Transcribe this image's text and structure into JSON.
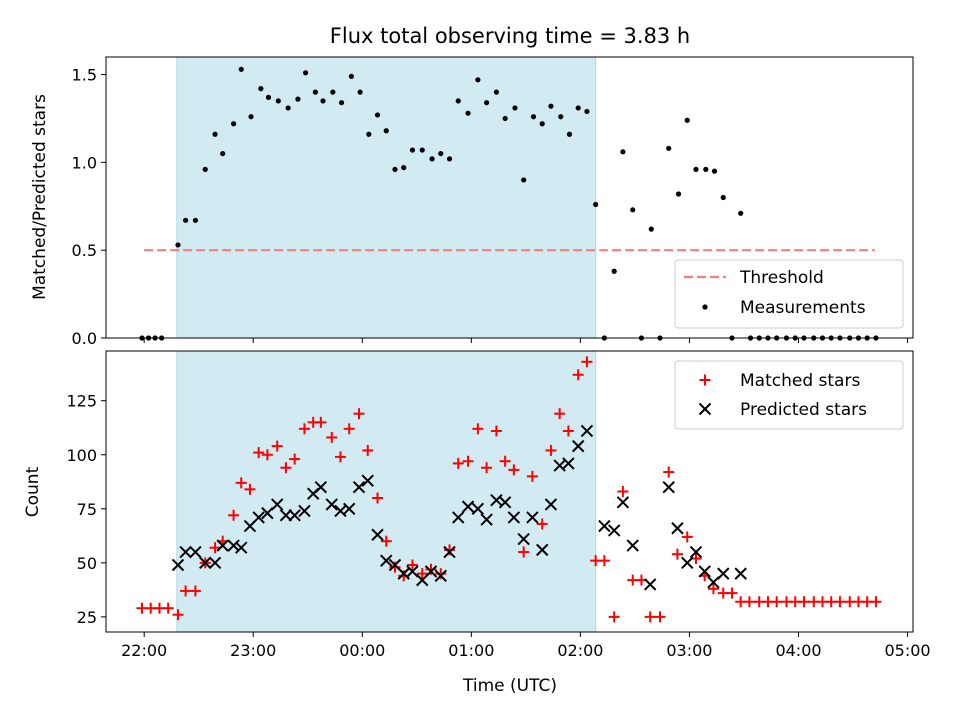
{
  "chart_data": {
    "type": "scatter",
    "title": "Flux total observing time = 3.83 h",
    "x_axis": {
      "label": "Time (UTC)",
      "ticks": [
        "22:00",
        "23:00",
        "00:00",
        "01:00",
        "02:00",
        "03:00",
        "04:00",
        "05:00"
      ],
      "tick_hours": [
        0,
        1,
        2,
        3,
        4,
        5,
        6,
        7
      ],
      "range_hours": [
        -0.35,
        7.05
      ],
      "origin": "22:00"
    },
    "shaded_interval_hours": [
      0.3,
      4.14
    ],
    "shade_color": "#add8e6",
    "top_panel": {
      "ylabel": "Matched/Predicted stars",
      "ylim": [
        0,
        1.6
      ],
      "yticks": [
        "0.0",
        "0.5",
        "1.0",
        "1.5"
      ],
      "ytick_values": [
        0,
        0.5,
        1.0,
        1.5
      ],
      "threshold": {
        "name": "Threshold",
        "value": 0.5,
        "x_range_hours": [
          0,
          6.7
        ],
        "color": "#f08080"
      },
      "measurements_name": "Measurements",
      "measurements": [
        [
          -0.02,
          0
        ],
        [
          0.04,
          0
        ],
        [
          0.1,
          0
        ],
        [
          0.16,
          0
        ],
        [
          0.31,
          0.53
        ],
        [
          0.38,
          0.67
        ],
        [
          0.47,
          0.67
        ],
        [
          0.56,
          0.96
        ],
        [
          0.65,
          1.16
        ],
        [
          0.72,
          1.05
        ],
        [
          0.82,
          1.22
        ],
        [
          0.89,
          1.53
        ],
        [
          0.98,
          1.26
        ],
        [
          1.07,
          1.42
        ],
        [
          1.14,
          1.37
        ],
        [
          1.23,
          1.35
        ],
        [
          1.32,
          1.31
        ],
        [
          1.41,
          1.36
        ],
        [
          1.48,
          1.51
        ],
        [
          1.57,
          1.4
        ],
        [
          1.64,
          1.35
        ],
        [
          1.73,
          1.4
        ],
        [
          1.81,
          1.34
        ],
        [
          1.9,
          1.49
        ],
        [
          1.98,
          1.4
        ],
        [
          2.06,
          1.16
        ],
        [
          2.14,
          1.27
        ],
        [
          2.22,
          1.18
        ],
        [
          2.3,
          0.96
        ],
        [
          2.38,
          0.97
        ],
        [
          2.46,
          1.07
        ],
        [
          2.55,
          1.07
        ],
        [
          2.64,
          1.02
        ],
        [
          2.72,
          1.05
        ],
        [
          2.8,
          1.02
        ],
        [
          2.88,
          1.35
        ],
        [
          2.97,
          1.28
        ],
        [
          3.06,
          1.47
        ],
        [
          3.14,
          1.34
        ],
        [
          3.23,
          1.4
        ],
        [
          3.31,
          1.25
        ],
        [
          3.4,
          1.31
        ],
        [
          3.48,
          0.9
        ],
        [
          3.57,
          1.26
        ],
        [
          3.65,
          1.22
        ],
        [
          3.73,
          1.32
        ],
        [
          3.82,
          1.26
        ],
        [
          3.9,
          1.16
        ],
        [
          3.98,
          1.31
        ],
        [
          4.06,
          1.29
        ],
        [
          4.14,
          0.76
        ],
        [
          4.22,
          0
        ],
        [
          4.31,
          0.38
        ],
        [
          4.39,
          1.06
        ],
        [
          4.48,
          0.73
        ],
        [
          4.56,
          0
        ],
        [
          4.65,
          0.62
        ],
        [
          4.73,
          0
        ],
        [
          4.81,
          1.08
        ],
        [
          4.9,
          0.82
        ],
        [
          4.98,
          1.24
        ],
        [
          5.06,
          0.96
        ],
        [
          5.15,
          0.96
        ],
        [
          5.23,
          0.95
        ],
        [
          5.31,
          0.8
        ],
        [
          5.39,
          0
        ],
        [
          5.47,
          0.71
        ],
        [
          5.56,
          0
        ],
        [
          5.64,
          0
        ],
        [
          5.72,
          0
        ],
        [
          5.8,
          0
        ],
        [
          5.89,
          0
        ],
        [
          5.97,
          0
        ],
        [
          6.05,
          0
        ],
        [
          6.14,
          0
        ],
        [
          6.22,
          0
        ],
        [
          6.3,
          0
        ],
        [
          6.38,
          0
        ],
        [
          6.47,
          0
        ],
        [
          6.55,
          0
        ],
        [
          6.63,
          0
        ],
        [
          6.71,
          0
        ]
      ]
    },
    "bottom_panel": {
      "ylabel": "Count",
      "ylim": [
        18,
        148
      ],
      "yticks": [
        "25",
        "50",
        "75",
        "100",
        "125"
      ],
      "ytick_values": [
        25,
        50,
        75,
        100,
        125
      ],
      "series": [
        {
          "name": "Matched stars",
          "marker": "+",
          "color": "#ff0000",
          "points": [
            [
              -0.02,
              29
            ],
            [
              0.06,
              29
            ],
            [
              0.14,
              29
            ],
            [
              0.22,
              29
            ],
            [
              0.31,
              26
            ],
            [
              0.38,
              37
            ],
            [
              0.47,
              37
            ],
            [
              0.56,
              50
            ],
            [
              0.65,
              57
            ],
            [
              0.72,
              60
            ],
            [
              0.82,
              72
            ],
            [
              0.89,
              87
            ],
            [
              0.97,
              84
            ],
            [
              1.05,
              101
            ],
            [
              1.13,
              100
            ],
            [
              1.22,
              104
            ],
            [
              1.3,
              94
            ],
            [
              1.38,
              98
            ],
            [
              1.47,
              112
            ],
            [
              1.55,
              115
            ],
            [
              1.62,
              115
            ],
            [
              1.72,
              108
            ],
            [
              1.8,
              99
            ],
            [
              1.88,
              112
            ],
            [
              1.97,
              119
            ],
            [
              2.05,
              102
            ],
            [
              2.14,
              80
            ],
            [
              2.22,
              60
            ],
            [
              2.3,
              48
            ],
            [
              2.38,
              44
            ],
            [
              2.46,
              49
            ],
            [
              2.55,
              45
            ],
            [
              2.63,
              47
            ],
            [
              2.72,
              45
            ],
            [
              2.8,
              56
            ],
            [
              2.88,
              96
            ],
            [
              2.97,
              97
            ],
            [
              3.06,
              112
            ],
            [
              3.14,
              94
            ],
            [
              3.23,
              111
            ],
            [
              3.31,
              97
            ],
            [
              3.39,
              93
            ],
            [
              3.48,
              55
            ],
            [
              3.56,
              90
            ],
            [
              3.65,
              68
            ],
            [
              3.73,
              102
            ],
            [
              3.81,
              119
            ],
            [
              3.89,
              111
            ],
            [
              3.98,
              137
            ],
            [
              4.06,
              143
            ],
            [
              4.14,
              51
            ],
            [
              4.22,
              51
            ],
            [
              4.31,
              25
            ],
            [
              4.39,
              83
            ],
            [
              4.48,
              42
            ],
            [
              4.56,
              42
            ],
            [
              4.64,
              25
            ],
            [
              4.73,
              25
            ],
            [
              4.81,
              92
            ],
            [
              4.89,
              54
            ],
            [
              4.98,
              62
            ],
            [
              5.06,
              52
            ],
            [
              5.14,
              44
            ],
            [
              5.22,
              38
            ],
            [
              5.31,
              36
            ],
            [
              5.39,
              36
            ],
            [
              5.47,
              32
            ],
            [
              5.55,
              32
            ],
            [
              5.64,
              32
            ],
            [
              5.72,
              32
            ],
            [
              5.8,
              32
            ],
            [
              5.89,
              32
            ],
            [
              5.97,
              32
            ],
            [
              6.05,
              32
            ],
            [
              6.14,
              32
            ],
            [
              6.22,
              32
            ],
            [
              6.3,
              32
            ],
            [
              6.38,
              32
            ],
            [
              6.47,
              32
            ],
            [
              6.55,
              32
            ],
            [
              6.63,
              32
            ],
            [
              6.71,
              32
            ]
          ]
        },
        {
          "name": "Predicted stars",
          "marker": "x",
          "color": "#000000",
          "points": [
            [
              0.31,
              49
            ],
            [
              0.38,
              55
            ],
            [
              0.47,
              55
            ],
            [
              0.56,
              50
            ],
            [
              0.65,
              50
            ],
            [
              0.72,
              58
            ],
            [
              0.82,
              58
            ],
            [
              0.89,
              57
            ],
            [
              0.97,
              67
            ],
            [
              1.05,
              71
            ],
            [
              1.13,
              73
            ],
            [
              1.22,
              77
            ],
            [
              1.3,
              72
            ],
            [
              1.38,
              72
            ],
            [
              1.47,
              74
            ],
            [
              1.55,
              82
            ],
            [
              1.62,
              85
            ],
            [
              1.72,
              77
            ],
            [
              1.8,
              74
            ],
            [
              1.88,
              75
            ],
            [
              1.97,
              85
            ],
            [
              2.05,
              88
            ],
            [
              2.14,
              63
            ],
            [
              2.22,
              51
            ],
            [
              2.3,
              49
            ],
            [
              2.38,
              45
            ],
            [
              2.46,
              46
            ],
            [
              2.55,
              42
            ],
            [
              2.63,
              46
            ],
            [
              2.72,
              44
            ],
            [
              2.8,
              55
            ],
            [
              2.88,
              71
            ],
            [
              2.97,
              76
            ],
            [
              3.06,
              75
            ],
            [
              3.14,
              70
            ],
            [
              3.23,
              79
            ],
            [
              3.31,
              78
            ],
            [
              3.39,
              71
            ],
            [
              3.48,
              61
            ],
            [
              3.56,
              71
            ],
            [
              3.65,
              56
            ],
            [
              3.73,
              77
            ],
            [
              3.81,
              95
            ],
            [
              3.89,
              96
            ],
            [
              3.98,
              104
            ],
            [
              4.06,
              111
            ],
            [
              4.22,
              67
            ],
            [
              4.31,
              65
            ],
            [
              4.39,
              78
            ],
            [
              4.48,
              58
            ],
            [
              4.64,
              40
            ],
            [
              4.81,
              85
            ],
            [
              4.89,
              66
            ],
            [
              4.98,
              50
            ],
            [
              5.06,
              55
            ],
            [
              5.14,
              46
            ],
            [
              5.22,
              41
            ],
            [
              5.31,
              45
            ],
            [
              5.47,
              45
            ]
          ]
        }
      ]
    },
    "legends": {
      "top": {
        "placement": "lower-right"
      },
      "bottom": {
        "placement": "upper-right"
      }
    }
  }
}
